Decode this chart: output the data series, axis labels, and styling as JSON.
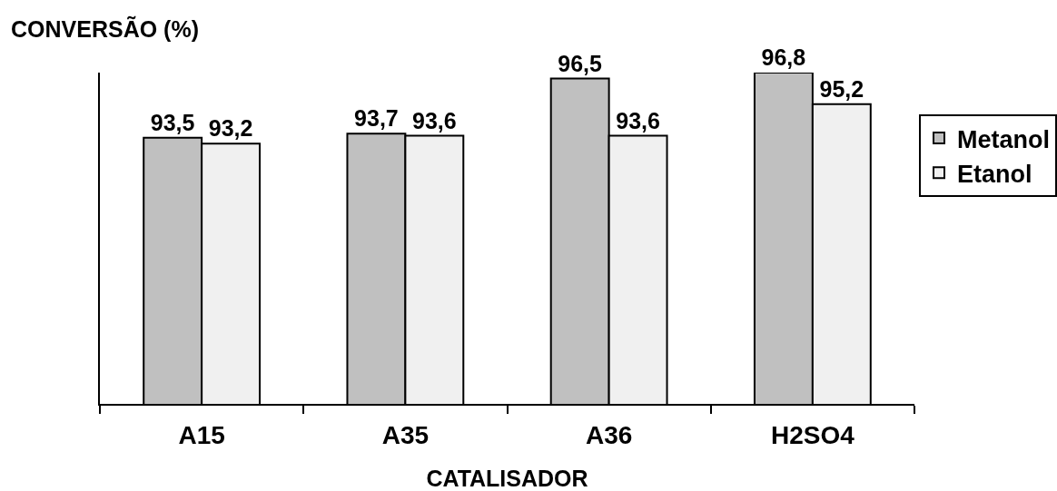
{
  "chart_data": {
    "type": "bar",
    "xlabel": "CATALISADOR",
    "ylabel": "CONVERSÃO (%)",
    "categories": [
      "A15",
      "A35",
      "A36",
      "H2SO4"
    ],
    "series": [
      {
        "name": "Metanol",
        "color": "#c0c0c0",
        "values": [
          93.5,
          93.7,
          96.5,
          96.8
        ],
        "value_labels": [
          "93,5",
          "93,7",
          "96,5",
          "96,8"
        ]
      },
      {
        "name": "Etanol",
        "color": "#f0f0f0",
        "values": [
          93.2,
          93.6,
          93.6,
          95.2
        ],
        "value_labels": [
          "93,2",
          "93,6",
          "93,6",
          "95,2"
        ]
      }
    ],
    "ylim": [
      80,
      96.8
    ],
    "tick_labels": "x",
    "legend": "right"
  }
}
